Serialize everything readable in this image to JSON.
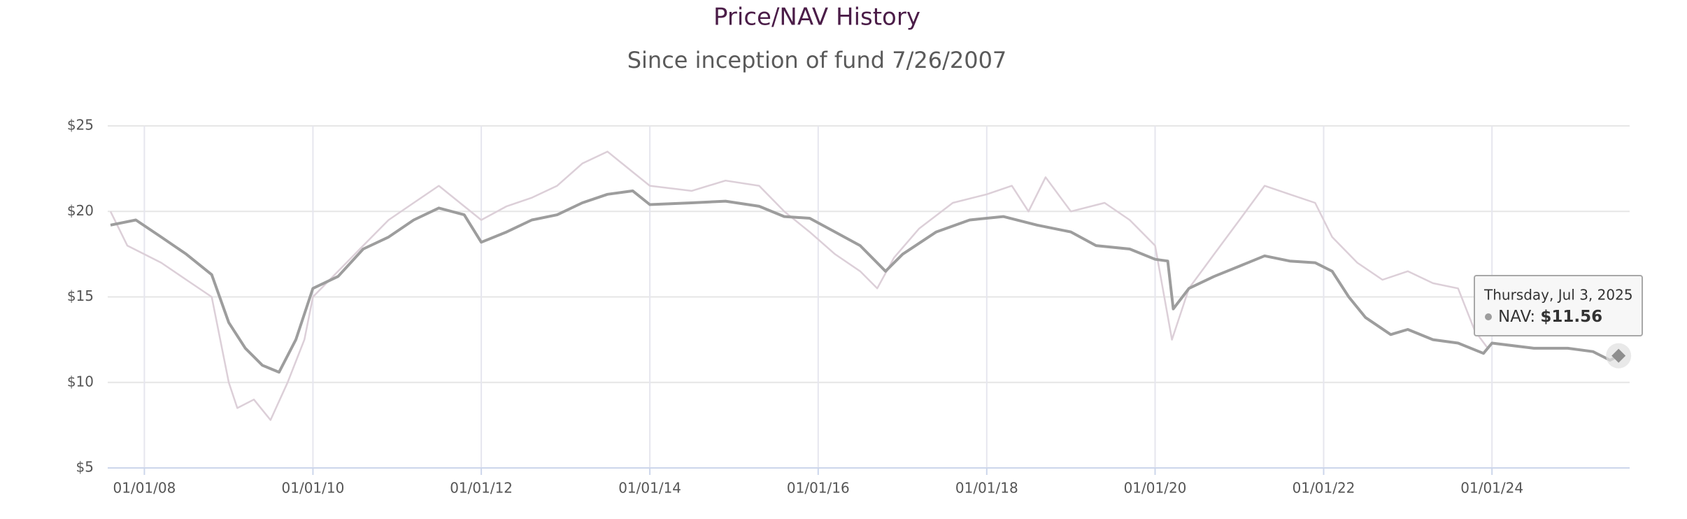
{
  "chart_data": {
    "type": "line",
    "title": "Price/NAV History",
    "subtitle": "Since inception of fund 7/26/2007",
    "xlim": [
      "2007-07-26",
      "2025-08-20"
    ],
    "xticks": [
      {
        "value": "2008-01-01",
        "label": "01/01/08"
      },
      {
        "value": "2010-01-01",
        "label": "01/01/10"
      },
      {
        "value": "2012-01-01",
        "label": "01/01/12"
      },
      {
        "value": "2014-01-01",
        "label": "01/01/14"
      },
      {
        "value": "2016-01-01",
        "label": "01/01/16"
      },
      {
        "value": "2018-01-01",
        "label": "01/01/18"
      },
      {
        "value": "2020-01-01",
        "label": "01/01/20"
      },
      {
        "value": "2022-01-01",
        "label": "01/01/22"
      },
      {
        "value": "2024-01-01",
        "label": "01/01/24"
      }
    ],
    "ylim": [
      5,
      25
    ],
    "yticks": [
      {
        "value": 5,
        "label": "$5"
      },
      {
        "value": 10,
        "label": "$10"
      },
      {
        "value": 15,
        "label": "$15"
      },
      {
        "value": 20,
        "label": "$20"
      },
      {
        "value": 25,
        "label": "$25"
      }
    ],
    "grid": true,
    "series": [
      {
        "name": "Price",
        "color": "#dccfd8",
        "x": [
          "2007-08-07",
          "2007-10-19",
          "2008-03-14",
          "2008-07-01",
          "2008-10-19",
          "2009-01-01",
          "2009-02-07",
          "2009-04-20",
          "2009-07-01",
          "2009-09-13",
          "2009-11-25",
          "2010-01-01",
          "2010-04-20",
          "2010-08-07",
          "2010-11-25",
          "2011-03-14",
          "2011-07-01",
          "2011-10-19",
          "2012-01-01",
          "2012-04-20",
          "2012-08-07",
          "2012-11-25",
          "2013-03-14",
          "2013-07-01",
          "2013-10-19",
          "2014-01-01",
          "2014-07-01",
          "2014-11-25",
          "2015-04-20",
          "2015-08-07",
          "2015-11-25",
          "2016-03-14",
          "2016-07-01",
          "2016-09-13",
          "2016-11-25",
          "2017-03-14",
          "2017-08-07",
          "2018-01-01",
          "2018-04-20",
          "2018-07-01",
          "2018-09-13",
          "2019-01-01",
          "2019-05-27",
          "2019-09-13",
          "2020-01-01",
          "2020-03-14",
          "2020-05-27",
          "2020-09-13",
          "2021-01-01",
          "2021-04-20",
          "2021-08-07",
          "2021-11-25",
          "2022-02-07",
          "2022-05-27",
          "2022-09-13",
          "2023-01-01",
          "2023-04-20",
          "2023-08-07",
          "2023-10-19",
          "2023-12-14"
        ],
        "values": [
          20,
          18,
          17,
          16,
          15,
          10,
          8.5,
          9,
          7.8,
          10,
          12.5,
          15,
          16.5,
          18,
          19.5,
          20.5,
          21.5,
          20.3,
          19.5,
          20.3,
          20.8,
          21.5,
          22.8,
          23.5,
          22.3,
          21.5,
          21.2,
          21.8,
          21.5,
          20,
          18.8,
          17.5,
          16.5,
          15.5,
          17.3,
          19,
          20.5,
          21,
          21.5,
          20,
          22,
          20,
          20.5,
          19.5,
          18,
          12.5,
          15.5,
          17.5,
          19.5,
          21.5,
          21,
          20.5,
          18.5,
          17,
          16,
          16.5,
          15.8,
          15.5,
          13,
          12
        ]
      },
      {
        "name": "NAV",
        "color": "#9d9d9d",
        "x": [
          "2007-08-07",
          "2007-11-25",
          "2008-03-14",
          "2008-07-01",
          "2008-10-19",
          "2009-01-01",
          "2009-03-14",
          "2009-05-27",
          "2009-08-07",
          "2009-10-19",
          "2010-01-01",
          "2010-04-20",
          "2010-08-07",
          "2010-11-25",
          "2011-03-14",
          "2011-07-01",
          "2011-10-19",
          "2012-01-01",
          "2012-04-20",
          "2012-08-07",
          "2012-11-25",
          "2013-03-14",
          "2013-07-01",
          "2013-10-19",
          "2014-01-01",
          "2014-07-01",
          "2014-11-25",
          "2015-04-20",
          "2015-08-07",
          "2015-11-25",
          "2016-03-14",
          "2016-07-01",
          "2016-10-19",
          "2017-01-01",
          "2017-05-27",
          "2017-10-19",
          "2018-03-14",
          "2018-08-07",
          "2019-01-01",
          "2019-04-20",
          "2019-09-13",
          "2020-01-01",
          "2020-02-25",
          "2020-03-20",
          "2020-05-27",
          "2020-09-13",
          "2021-01-01",
          "2021-04-20",
          "2021-08-07",
          "2021-11-25",
          "2022-02-07",
          "2022-04-20",
          "2022-07-01",
          "2022-10-19",
          "2023-01-01",
          "2023-04-20",
          "2023-08-07",
          "2023-11-25",
          "2024-01-01",
          "2024-07-01",
          "2024-11-25",
          "2025-03-14",
          "2025-05-27",
          "2025-07-03"
        ],
        "values": [
          19.2,
          19.5,
          18.5,
          17.5,
          16.3,
          13.5,
          12,
          11,
          10.6,
          12.5,
          15.5,
          16.2,
          17.8,
          18.5,
          19.5,
          20.2,
          19.8,
          18.2,
          18.8,
          19.5,
          19.8,
          20.5,
          21,
          21.2,
          20.4,
          20.5,
          20.6,
          20.3,
          19.7,
          19.6,
          18.8,
          18,
          16.5,
          17.5,
          18.8,
          19.5,
          19.7,
          19.2,
          18.8,
          18,
          17.8,
          17.2,
          17.1,
          14.3,
          15.5,
          16.2,
          16.8,
          17.4,
          17.1,
          17,
          16.5,
          15,
          13.8,
          12.8,
          13.1,
          12.5,
          12.3,
          11.7,
          12.3,
          12,
          12,
          11.8,
          11.3,
          11.56
        ]
      }
    ],
    "tooltip": {
      "title": "Thursday, Jul 3, 2025",
      "label": "NAV:",
      "value_label": "$11.56"
    }
  }
}
